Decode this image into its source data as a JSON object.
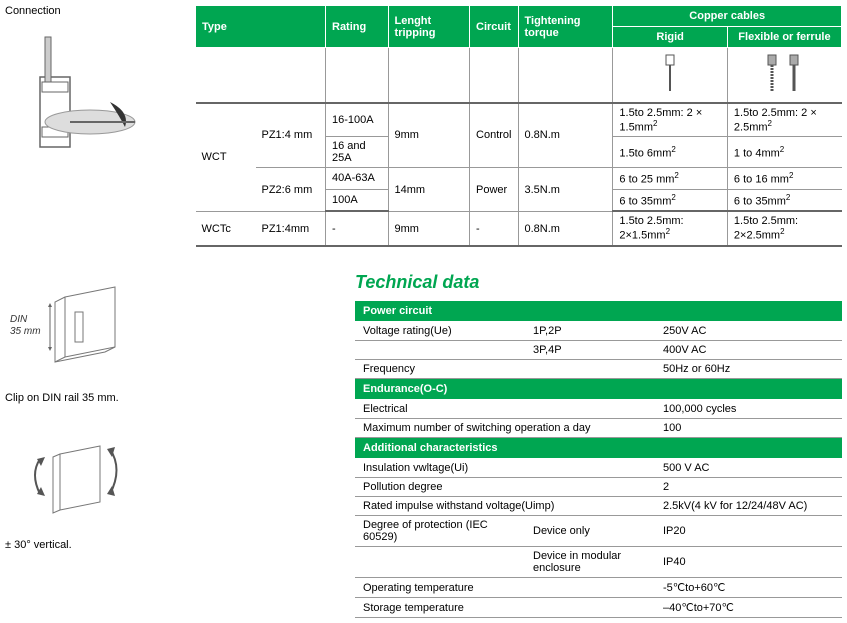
{
  "left": {
    "connection_label": "Connection",
    "din_label": "DIN 35 mm",
    "din_caption": "Clip on DIN rail 35 mm.",
    "tilt_caption": "± 30° vertical."
  },
  "spec_table": {
    "headers": {
      "type": "Type",
      "rating": "Rating",
      "length_tripping": "Lenght tripping",
      "circuit": "Circuit",
      "tightening_torque": "Tightening torque",
      "copper_cables": "Copper cables",
      "rigid": "Rigid",
      "flexible": "Flexible or ferrule"
    },
    "rows": [
      {
        "type": "WCT",
        "sub": "PZ1:4 mm",
        "rating": "16-100A",
        "len": "9mm",
        "circuit": "Control",
        "torque": "0.8N.m",
        "rigid": "1.5to 2.5mm: 2 × 1.5mm",
        "flex": "1.5to 2.5mm: 2 × 2.5mm",
        "sup": "2"
      },
      {
        "type": "",
        "sub": "",
        "rating": "16 and 25A",
        "len": "",
        "circuit": "",
        "torque": "",
        "rigid": "1.5to 6mm",
        "flex": "1 to 4mm",
        "sup": "2"
      },
      {
        "type": "",
        "sub": "PZ2:6 mm",
        "rating": "40A-63A",
        "len": "14mm",
        "circuit": "Power",
        "torque": "3.5N.m",
        "rigid": "6 to 25 mm",
        "flex": "6 to 16 mm",
        "sup": "2"
      },
      {
        "type": "",
        "sub": "",
        "rating": "100A",
        "len": "",
        "circuit": "",
        "torque": "",
        "rigid": "6 to 35mm",
        "flex": "6 to 35mm",
        "sup": "2"
      },
      {
        "type": "WCTc",
        "sub": "PZ1:4mm",
        "rating": "-",
        "len": "9mm",
        "circuit": "-",
        "torque": "0.8N.m",
        "rigid": "1.5to 2.5mm: 2×1.5mm",
        "flex": "1.5to 2.5mm: 2×2.5mm",
        "sup": "2"
      }
    ]
  },
  "tech": {
    "title": "Technical data",
    "sections": [
      {
        "header": "Power circuit",
        "rows": [
          [
            "Voltage rating(Ue)",
            "1P,2P",
            "250V AC"
          ],
          [
            "",
            "3P,4P",
            "400V AC"
          ],
          [
            "Frequency",
            "",
            "50Hz or 60Hz"
          ]
        ]
      },
      {
        "header": "Endurance(O-C)",
        "rows": [
          [
            "Electrical",
            "",
            "100,000 cycles"
          ],
          [
            "Maximum number of switching operation a day",
            "",
            "100"
          ]
        ]
      },
      {
        "header": "Additional characteristics",
        "rows": [
          [
            "Insulation vwltage(Ui)",
            "",
            "500 V AC"
          ],
          [
            "Pollution degree",
            "",
            "2"
          ],
          [
            "Rated impulse withstand voltage(Uimp)",
            "",
            "2.5kV(4 kV for 12/24/48V AC)"
          ],
          [
            "Degree of protection (IEC 60529)",
            "Device only",
            "IP20"
          ],
          [
            "",
            "Device in modular enclosure",
            "IP40"
          ],
          [
            "Operating temperature",
            "",
            "-5℃to+60℃"
          ],
          [
            "Storage temperature",
            "",
            "–40℃to+70℃"
          ]
        ]
      }
    ]
  },
  "style": {
    "green": "#00a651",
    "border": "#999999"
  }
}
